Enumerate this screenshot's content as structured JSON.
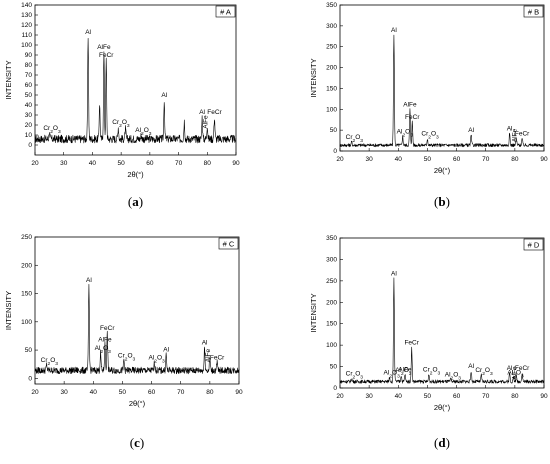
{
  "chart_data": [
    {
      "type": "line",
      "panel_tag": "# A",
      "caption": "(a)",
      "ylabel": "INTENSITY",
      "xlabel": "2θ(°)",
      "xlim": [
        20,
        90
      ],
      "ylim": [
        -10,
        140
      ],
      "xticks": [
        20,
        30,
        40,
        50,
        60,
        70,
        80,
        90
      ],
      "yticks": [
        0,
        10,
        20,
        30,
        40,
        50,
        60,
        70,
        80,
        90,
        100,
        110,
        120,
        130,
        140
      ],
      "baseline": 6,
      "noise": 4,
      "peaks": [
        {
          "x": 38.5,
          "y": 108,
          "label": "Al"
        },
        {
          "x": 42.5,
          "y": 42,
          "label": ""
        },
        {
          "x": 44.0,
          "y": 93,
          "label": "AlFe"
        },
        {
          "x": 44.8,
          "y": 85,
          "label": "FeCr"
        },
        {
          "x": 49.0,
          "y": 18,
          "label": "Cr2O3"
        },
        {
          "x": 51.5,
          "y": 16,
          "label": ""
        },
        {
          "x": 57.0,
          "y": 10,
          "label": "Al2O3"
        },
        {
          "x": 65.0,
          "y": 45,
          "label": "Al"
        },
        {
          "x": 72.0,
          "y": 24,
          "label": ""
        },
        {
          "x": 78.2,
          "y": 28,
          "label": "Al"
        },
        {
          "x": 80.0,
          "y": 20,
          "label": "AlFe"
        },
        {
          "x": 82.5,
          "y": 28,
          "label": "FeCr"
        },
        {
          "x": 25.0,
          "y": 12,
          "label": "Cr2O3"
        }
      ]
    },
    {
      "type": "line",
      "panel_tag": "# B",
      "caption": "(b)",
      "ylabel": "INTENSITY",
      "xlabel": "2θ(°)",
      "xlim": [
        20,
        90
      ],
      "ylim": [
        0,
        350
      ],
      "xticks": [
        20,
        30,
        40,
        50,
        60,
        70,
        80,
        90
      ],
      "yticks": [
        0,
        50,
        100,
        150,
        200,
        250,
        300,
        350
      ],
      "baseline": 14,
      "noise": 4,
      "peaks": [
        {
          "x": 24.0,
          "y": 22,
          "label": "Cr2O3"
        },
        {
          "x": 38.5,
          "y": 278,
          "label": "Al"
        },
        {
          "x": 41.5,
          "y": 35,
          "label": "Al2O3"
        },
        {
          "x": 44.0,
          "y": 100,
          "label": "AlFe"
        },
        {
          "x": 44.8,
          "y": 70,
          "label": "FeCr"
        },
        {
          "x": 50.0,
          "y": 30,
          "label": "Cr2O3"
        },
        {
          "x": 65.0,
          "y": 38,
          "label": "Al"
        },
        {
          "x": 78.2,
          "y": 42,
          "label": "Al"
        },
        {
          "x": 80.5,
          "y": 30,
          "label": "AlFe"
        },
        {
          "x": 82.5,
          "y": 30,
          "label": "FeCr"
        }
      ]
    },
    {
      "type": "line",
      "panel_tag": "# C",
      "caption": "(c)",
      "ylabel": "INTENSITY",
      "xlabel": "2θ(°)",
      "xlim": [
        20,
        90
      ],
      "ylim": [
        -10,
        250
      ],
      "xticks": [
        20,
        30,
        40,
        50,
        60,
        70,
        80,
        90
      ],
      "yticks": [
        0,
        50,
        100,
        150,
        200,
        250
      ],
      "baseline": 14,
      "noise": 6,
      "peaks": [
        {
          "x": 24.0,
          "y": 24,
          "label": "Cr2O3"
        },
        {
          "x": 38.5,
          "y": 165,
          "label": "Al"
        },
        {
          "x": 42.5,
          "y": 45,
          "label": "Al2O3"
        },
        {
          "x": 44.0,
          "y": 60,
          "label": "AlFe"
        },
        {
          "x": 44.8,
          "y": 80,
          "label": "FeCr"
        },
        {
          "x": 50.5,
          "y": 32,
          "label": "Cr2O3"
        },
        {
          "x": 61.0,
          "y": 28,
          "label": "Al2O3"
        },
        {
          "x": 65.0,
          "y": 42,
          "label": "Al"
        },
        {
          "x": 78.2,
          "y": 55,
          "label": "Al"
        },
        {
          "x": 80.0,
          "y": 35,
          "label": "AlFe"
        },
        {
          "x": 82.5,
          "y": 28,
          "label": "FeCr"
        }
      ]
    },
    {
      "type": "line",
      "panel_tag": "# D",
      "caption": "(d)",
      "ylabel": "INTENSITY",
      "xlabel": "2θ(°)",
      "xlim": [
        20,
        90
      ],
      "ylim": [
        0,
        350
      ],
      "xticks": [
        20,
        30,
        40,
        50,
        60,
        70,
        80,
        90
      ],
      "yticks": [
        0,
        50,
        100,
        150,
        200,
        250,
        300,
        350
      ],
      "baseline": 15,
      "noise": 4,
      "peaks": [
        {
          "x": 24.0,
          "y": 22,
          "label": "Cr2O3"
        },
        {
          "x": 37.0,
          "y": 25,
          "label": "Al2O3"
        },
        {
          "x": 38.5,
          "y": 255,
          "label": "Al"
        },
        {
          "x": 41.0,
          "y": 30,
          "label": "Al2O3"
        },
        {
          "x": 42.3,
          "y": 32,
          "label": "AlFe"
        },
        {
          "x": 44.6,
          "y": 95,
          "label": "FeCr"
        },
        {
          "x": 50.5,
          "y": 32,
          "label": "Cr2O3"
        },
        {
          "x": 58.0,
          "y": 20,
          "label": "Al2O3"
        },
        {
          "x": 65.0,
          "y": 40,
          "label": "Al"
        },
        {
          "x": 68.5,
          "y": 30,
          "label": "Cr2O3"
        },
        {
          "x": 78.2,
          "y": 35,
          "label": "Al"
        },
        {
          "x": 79.5,
          "y": 25,
          "label": "Al2O3"
        },
        {
          "x": 80.5,
          "y": 28,
          "label": "AlFe"
        },
        {
          "x": 82.5,
          "y": 35,
          "label": "FeCr"
        }
      ]
    }
  ]
}
